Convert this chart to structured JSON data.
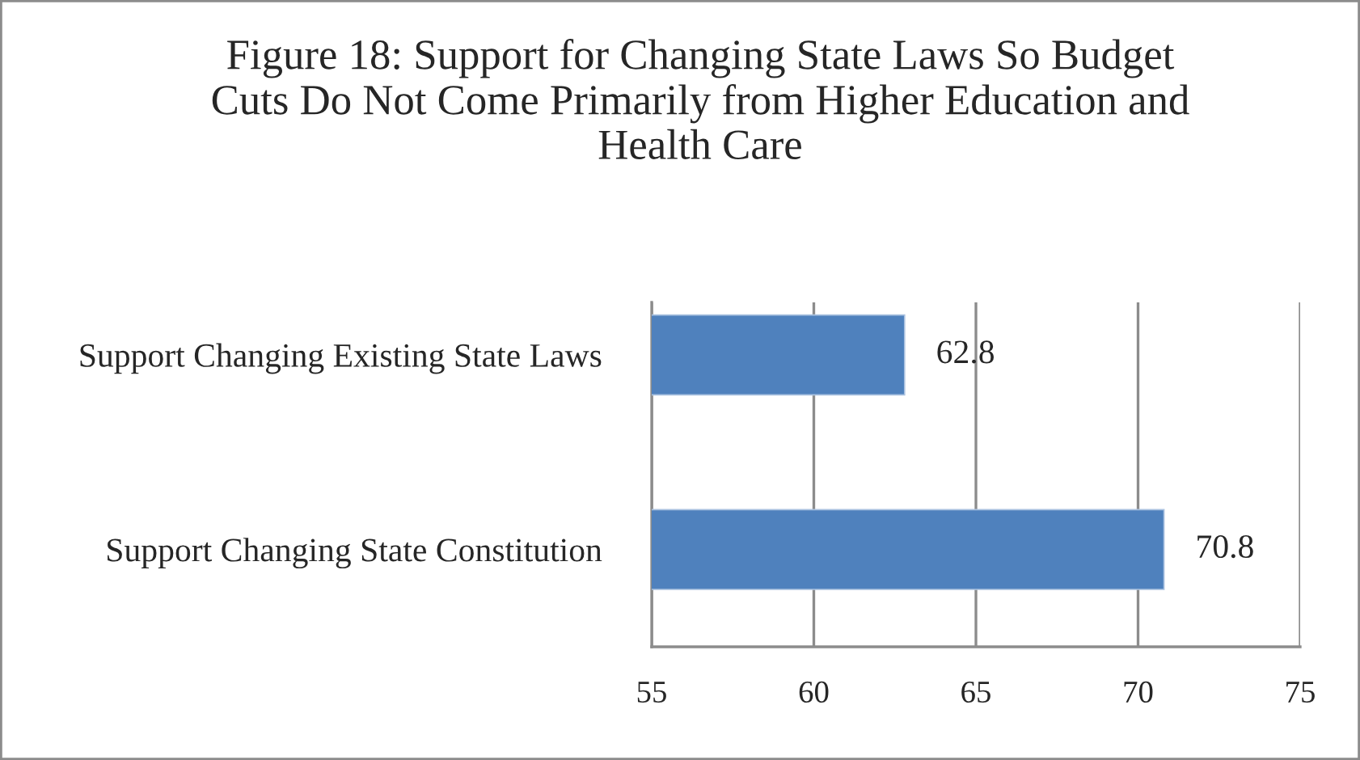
{
  "chart_data": {
    "type": "bar",
    "orientation": "horizontal",
    "title": "Figure 18: Support for Changing State Laws So Budget\nCuts Do Not Come Primarily from Higher Education and\nHealth Care",
    "categories": [
      "Support Changing Existing State Laws",
      "Support Changing State Constitution"
    ],
    "values": [
      62.8,
      70.8
    ],
    "color": "#4f81bd",
    "xlim": [
      55,
      75
    ],
    "xticks": [
      55,
      60,
      65,
      70,
      75
    ],
    "grid": "x",
    "data_labels": true
  }
}
